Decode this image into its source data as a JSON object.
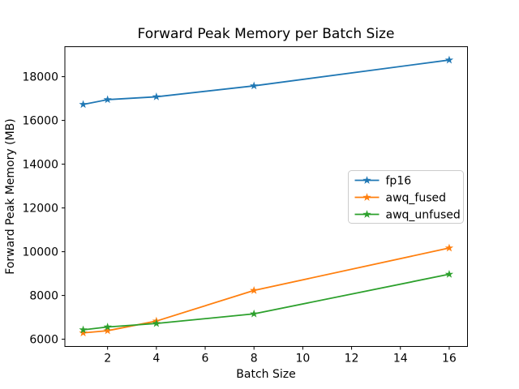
{
  "window": {
    "background": "#ffffff"
  },
  "chart_data": {
    "type": "line",
    "title": "Forward Peak Memory per Batch Size",
    "xlabel": "Batch Size",
    "ylabel": "Forward Peak Memory (MB)",
    "x": [
      1,
      2,
      4,
      8,
      16
    ],
    "series": [
      {
        "name": "fp16",
        "color": "#1f77b4",
        "values": [
          16730,
          16950,
          17080,
          17580,
          18760
        ]
      },
      {
        "name": "awq_fused",
        "color": "#ff7f0e",
        "values": [
          6290,
          6390,
          6830,
          8230,
          10170
        ]
      },
      {
        "name": "awq_unfused",
        "color": "#2ca02c",
        "values": [
          6430,
          6560,
          6720,
          7160,
          8970
        ]
      }
    ],
    "xticks": [
      2,
      4,
      6,
      8,
      10,
      12,
      14,
      16
    ],
    "yticks": [
      6000,
      8000,
      10000,
      12000,
      14000,
      16000,
      18000
    ],
    "xlim": [
      0.25,
      16.75
    ],
    "ylim": [
      5670,
      19370
    ],
    "marker": "star",
    "grid": false,
    "legend": {
      "position": "center-right",
      "entries": [
        "fp16",
        "awq_fused",
        "awq_unfused"
      ]
    },
    "axis_color": "#000000",
    "spine_color": "#000000",
    "legend_border_color": "#cccccc",
    "background_color": "#ffffff"
  }
}
